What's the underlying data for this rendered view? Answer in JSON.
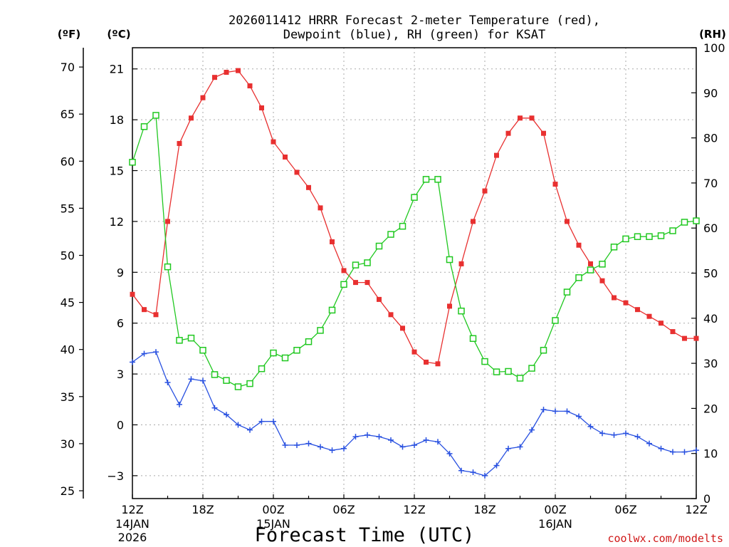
{
  "chart_data": {
    "type": "line",
    "title_line1": "2026011412 HRRR Forecast 2-meter Temperature (red),",
    "title_line2": "Dewpoint (blue), RH (green) for KSAT",
    "xlabel": "Forecast Time (UTC)",
    "credit": "coolwx.com/modelts",
    "axis_units": {
      "fahrenheit": "(ºF)",
      "celsius": "(ºC)",
      "rh": "(RH)"
    },
    "x_ticks": [
      {
        "hour": 0,
        "label": "12Z",
        "sub1": "14JAN",
        "sub2": "2026"
      },
      {
        "hour": 6,
        "label": "18Z",
        "sub1": "",
        "sub2": ""
      },
      {
        "hour": 12,
        "label": "00Z",
        "sub1": "15JAN",
        "sub2": ""
      },
      {
        "hour": 18,
        "label": "06Z",
        "sub1": "",
        "sub2": ""
      },
      {
        "hour": 24,
        "label": "12Z",
        "sub1": "",
        "sub2": ""
      },
      {
        "hour": 30,
        "label": "18Z",
        "sub1": "",
        "sub2": ""
      },
      {
        "hour": 36,
        "label": "00Z",
        "sub1": "16JAN",
        "sub2": ""
      },
      {
        "hour": 42,
        "label": "06Z",
        "sub1": "",
        "sub2": ""
      },
      {
        "hour": 48,
        "label": "12Z",
        "sub1": "",
        "sub2": ""
      }
    ],
    "y_celsius": {
      "min": -4.35,
      "max": 22.25,
      "ticks": [
        "-3",
        "0",
        "3",
        "6",
        "9",
        "12",
        "15",
        "18",
        "21"
      ]
    },
    "y_fahrenheit": {
      "ticks": [
        "25",
        "30",
        "35",
        "40",
        "45",
        "50",
        "55",
        "60",
        "65",
        "70"
      ]
    },
    "y_rh": {
      "min": 0,
      "max": 100,
      "ticks": [
        "0",
        "10",
        "20",
        "30",
        "40",
        "50",
        "60",
        "70",
        "80",
        "90",
        "100"
      ]
    },
    "grid": true,
    "series": [
      {
        "name": "2-meter Temperature",
        "color": "#e83030",
        "marker": "filled-square",
        "units": "C",
        "values": [
          7.7,
          6.8,
          6.5,
          12.0,
          16.6,
          18.1,
          19.3,
          20.5,
          20.8,
          20.9,
          20.0,
          18.7,
          16.7,
          15.8,
          14.9,
          14.0,
          12.8,
          10.8,
          9.1,
          8.4,
          8.4,
          7.4,
          6.5,
          5.7,
          4.3,
          3.7,
          3.6,
          7.0,
          9.5,
          12.0,
          13.8,
          15.9,
          17.2,
          18.1,
          18.1,
          17.2,
          14.2,
          12.0,
          10.6,
          9.5,
          8.5,
          7.5,
          7.2,
          6.8,
          6.4,
          6.0,
          5.5,
          5.1,
          5.1
        ]
      },
      {
        "name": "Dewpoint",
        "color": "#2850e0",
        "marker": "plus",
        "units": "C",
        "values": [
          3.7,
          4.2,
          4.3,
          2.5,
          1.2,
          2.7,
          2.6,
          1.0,
          0.6,
          0.0,
          -0.3,
          0.2,
          0.2,
          -1.2,
          -1.2,
          -1.1,
          -1.3,
          -1.5,
          -1.4,
          -0.7,
          -0.6,
          -0.7,
          -0.9,
          -1.3,
          -1.2,
          -0.9,
          -1.0,
          -1.7,
          -2.7,
          -2.8,
          -3.0,
          -2.4,
          -1.4,
          -1.3,
          -0.3,
          0.9,
          0.8,
          0.8,
          0.5,
          -0.1,
          -0.5,
          -0.6,
          -0.5,
          -0.7,
          -1.1,
          -1.4,
          -1.6,
          -1.6,
          -1.5
        ]
      },
      {
        "name": "RH",
        "color": "#20c820",
        "marker": "open-square",
        "units": "%",
        "values": [
          74.6,
          82.5,
          85.0,
          51.4,
          35.1,
          35.6,
          32.9,
          27.5,
          26.2,
          24.8,
          25.5,
          28.8,
          32.3,
          31.2,
          32.9,
          34.8,
          37.3,
          41.8,
          47.5,
          51.8,
          52.3,
          56.0,
          58.6,
          60.4,
          66.8,
          70.8,
          70.8,
          53.0,
          41.6,
          35.5,
          30.4,
          28.1,
          28.2,
          26.7,
          28.9,
          32.9,
          39.5,
          45.8,
          49.0,
          50.7,
          52.0,
          55.8,
          57.6,
          58.1,
          58.1,
          58.3,
          59.4,
          61.3,
          61.6
        ]
      }
    ]
  }
}
